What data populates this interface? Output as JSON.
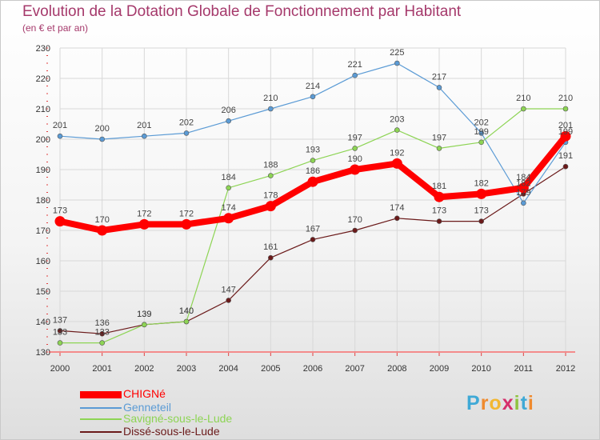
{
  "chart_data": {
    "type": "line",
    "title": "Evolution de la Dotation Globale de Fonctionnement par Habitant",
    "subtitle": "(en € et par an)",
    "xlabel": "",
    "ylabel": "",
    "x": [
      "2000",
      "2001",
      "2002",
      "2003",
      "2004",
      "2005",
      "2006",
      "2007",
      "2008",
      "2009",
      "2010",
      "2011",
      "2012"
    ],
    "ylim": [
      130,
      230
    ],
    "yticks": [
      "130",
      "140",
      "150",
      "160",
      "170",
      "180",
      "190",
      "200",
      "210",
      "220",
      "230"
    ],
    "grid": true,
    "legend_position": "bottom-left",
    "series": [
      {
        "name": "CHIGNé",
        "color": "#ff0000",
        "values": [
          173,
          170,
          172,
          172,
          174,
          178,
          186,
          190,
          192,
          181,
          182,
          184,
          201
        ],
        "labels": [
          "173",
          "170",
          "172",
          "172",
          "174",
          "178",
          "186",
          "190",
          "192",
          "181",
          "182",
          "184",
          "201"
        ]
      },
      {
        "name": "Genneteil",
        "color": "#5b9bd5",
        "values": [
          201,
          200,
          201,
          202,
          206,
          210,
          214,
          221,
          225,
          217,
          202,
          179,
          199
        ],
        "labels": [
          "201",
          "200",
          "201",
          "202",
          "206",
          "210",
          "214",
          "221",
          "225",
          "217",
          "202",
          "179",
          "199"
        ]
      },
      {
        "name": "Savigné-sous-le-Lude",
        "color": "#8dd454",
        "values": [
          133,
          133,
          139,
          140,
          184,
          188,
          193,
          197,
          203,
          197,
          199,
          210,
          210
        ],
        "labels": [
          "133",
          "133",
          "139",
          "140",
          "184",
          "188",
          "193",
          "197",
          "203",
          "197",
          "199",
          "210",
          "210"
        ]
      },
      {
        "name": "Dissé-sous-le-Lude",
        "color": "#6b1a1a",
        "values": [
          137,
          136,
          139,
          140,
          147,
          161,
          167,
          170,
          174,
          173,
          173,
          182,
          191
        ],
        "labels": [
          "137",
          "136",
          "139",
          "140",
          "147",
          "161",
          "167",
          "170",
          "174",
          "173",
          "173",
          "182",
          "191"
        ]
      }
    ]
  },
  "logo": {
    "letters": [
      "P",
      "r",
      "o",
      "x",
      "i",
      "t",
      "i"
    ],
    "colors": [
      "#3fa9d6",
      "#ef8a2e",
      "#f2b731",
      "#d62f6b",
      "#8fc33f",
      "#3fa9d6",
      "#ef8a2e"
    ]
  }
}
